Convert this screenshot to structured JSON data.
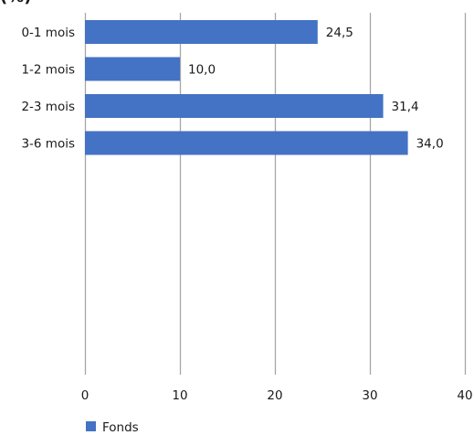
{
  "chart_data": {
    "type": "bar",
    "orientation": "horizontal",
    "title": "(%)",
    "categories": [
      "0-1 mois",
      "1-2 mois",
      "2-3 mois",
      "3-6 mois"
    ],
    "series": [
      {
        "name": "Fonds",
        "values": [
          24.5,
          10.0,
          31.4,
          34.0
        ],
        "labels": [
          "24,5",
          "10,0",
          "31,4",
          "34,0"
        ],
        "color": "#4472C4"
      }
    ],
    "xlim": [
      0,
      40
    ],
    "xticks": [
      0,
      10,
      20,
      30,
      40
    ],
    "xtick_labels": [
      "0",
      "10",
      "20",
      "30",
      "40"
    ],
    "grid": "vertical",
    "legend_position": "bottom-left",
    "gridline_color": "#a6a6a6"
  }
}
